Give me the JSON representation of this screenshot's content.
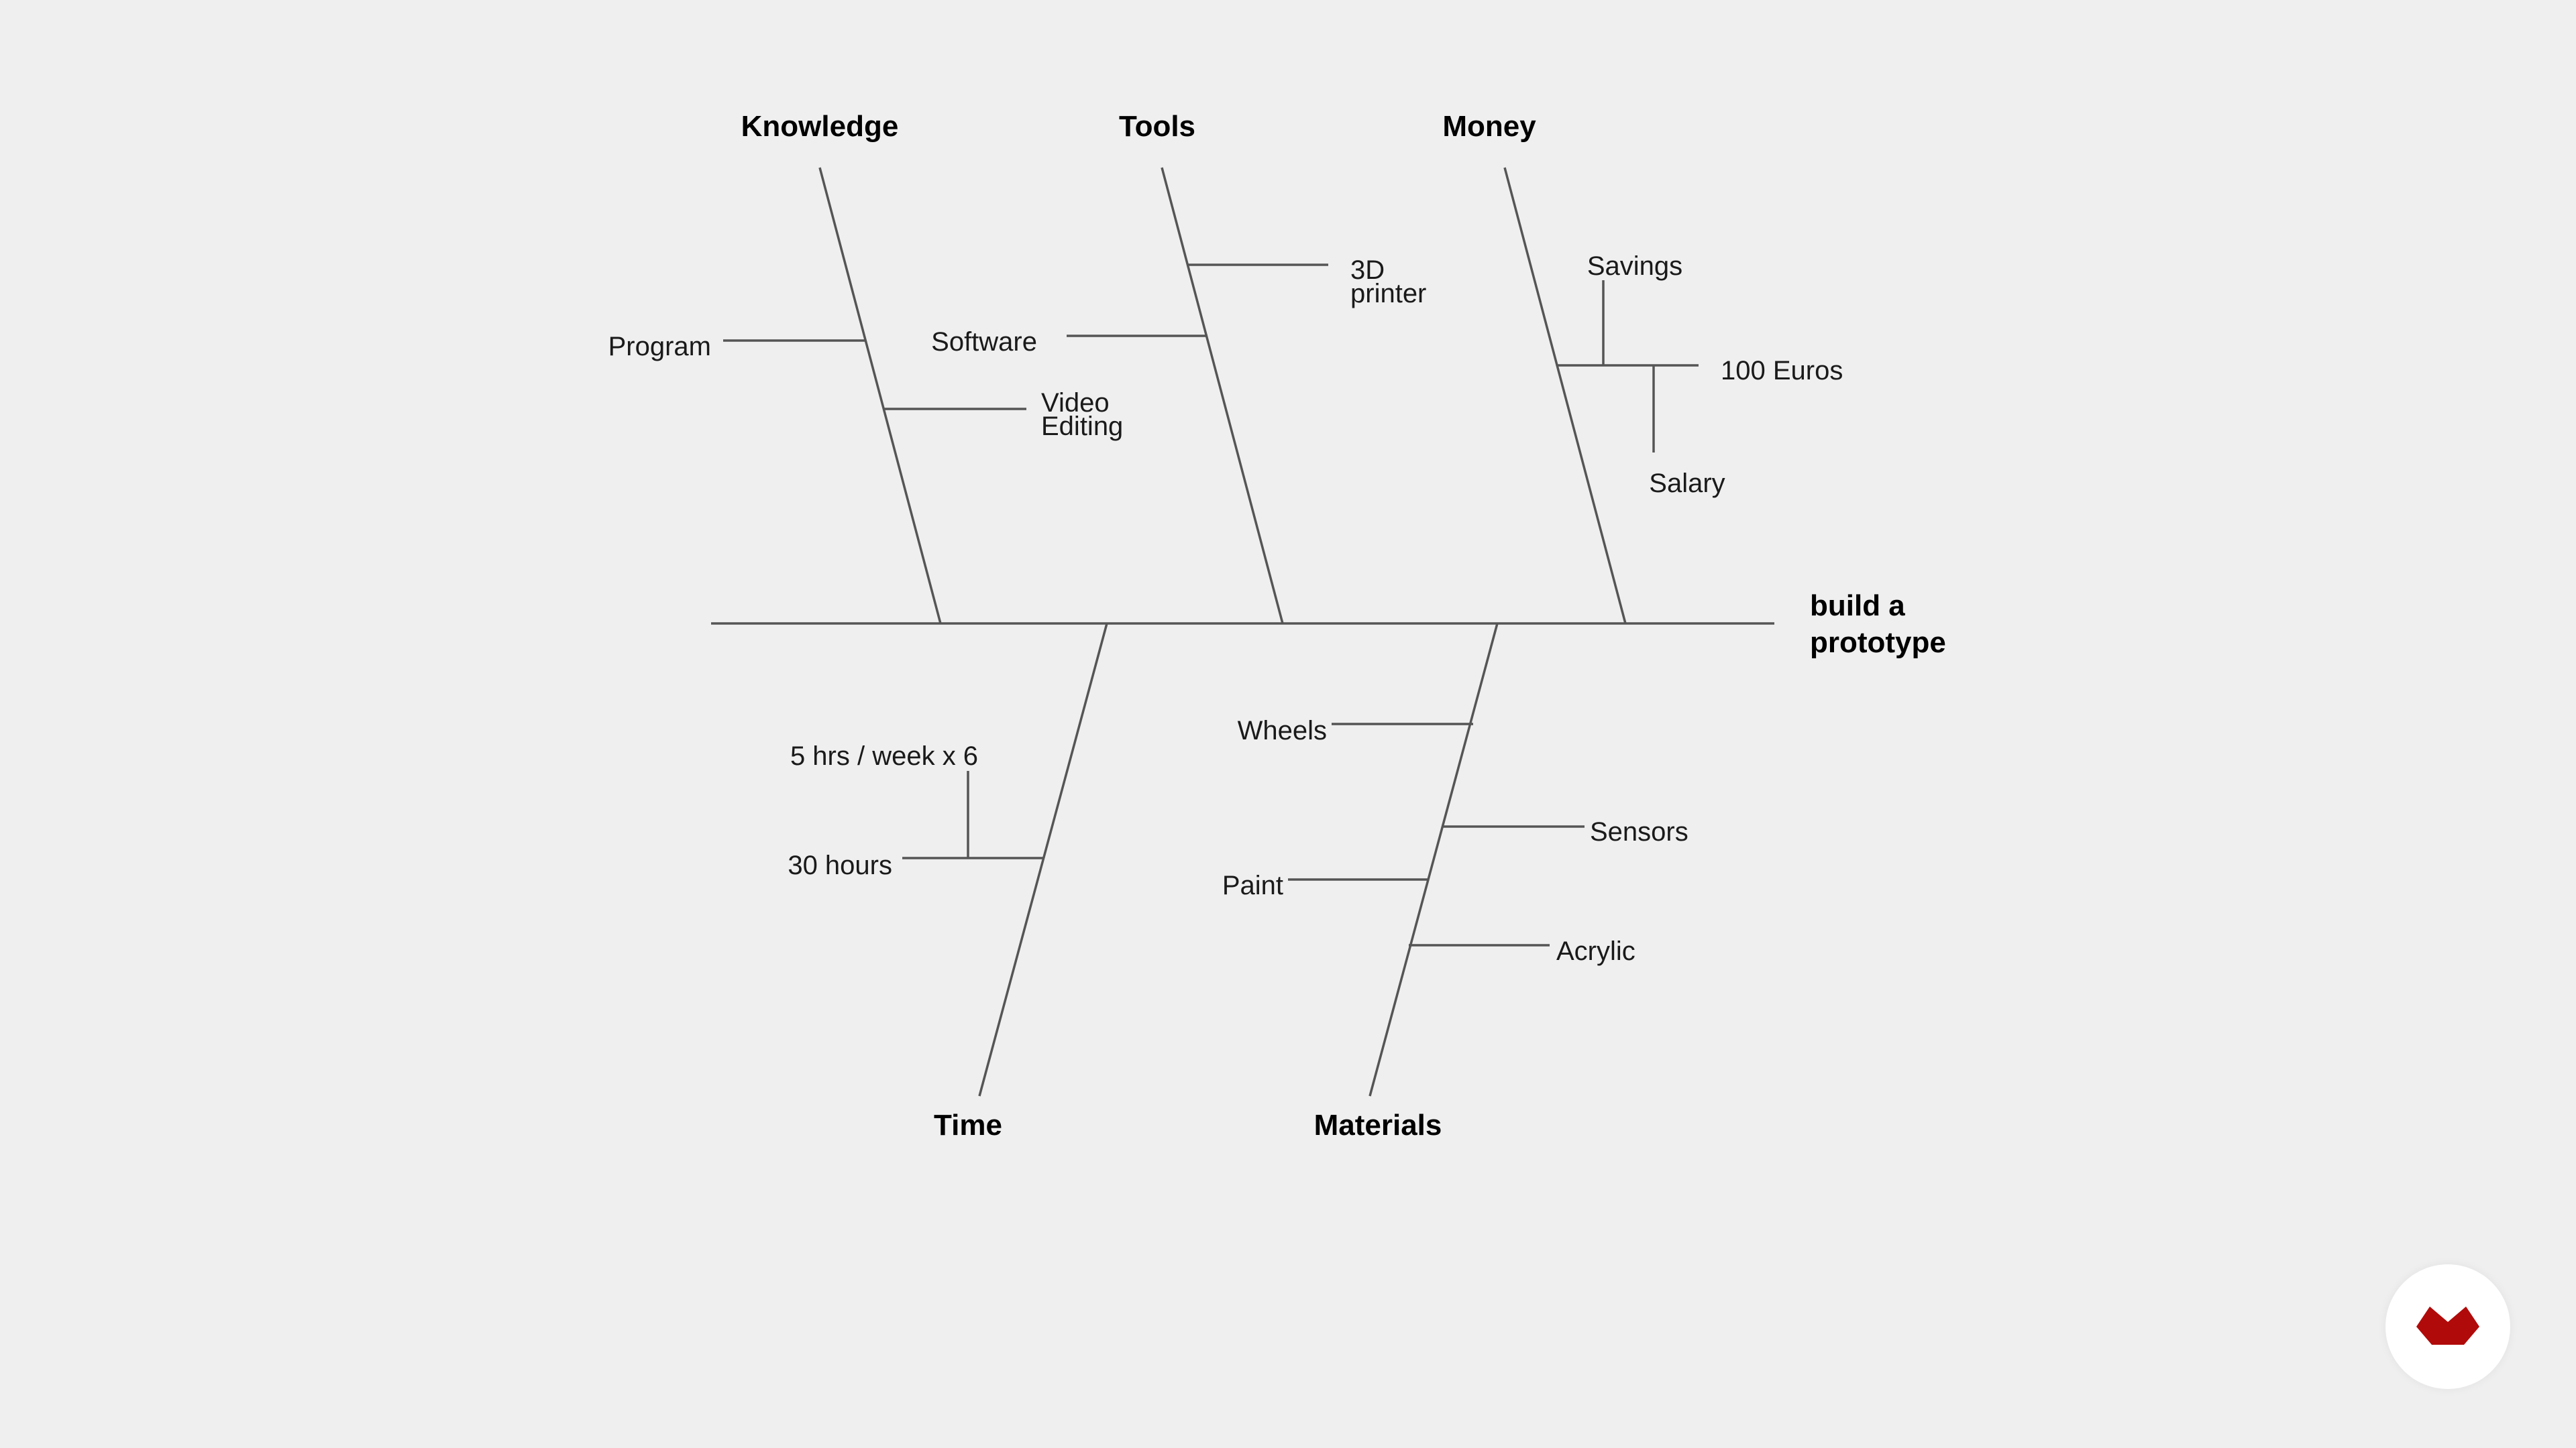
{
  "effect": {
    "line1": "build a",
    "line2": "prototype"
  },
  "categories": {
    "knowledge": "Knowledge",
    "tools": "Tools",
    "money": "Money",
    "time": "Time",
    "materials": "Materials"
  },
  "causes": {
    "program": "Program",
    "video_editing": [
      "Video",
      "Editing"
    ],
    "software": "Software",
    "printer_3d": [
      "3D",
      "printer"
    ],
    "savings": "Savings",
    "euros": "100 Euros",
    "salary": "Salary",
    "hours_week": "5 hrs / week x 6",
    "hours_total": "30 hours",
    "wheels": "Wheels",
    "sensors": "Sensors",
    "paint": "Paint",
    "acrylic": "Acrylic"
  },
  "colors": {
    "background": "#efefef",
    "lines": "#555555",
    "logo_red": "#b10a0a"
  },
  "logo": {
    "icon": "brand-logo-icon"
  }
}
